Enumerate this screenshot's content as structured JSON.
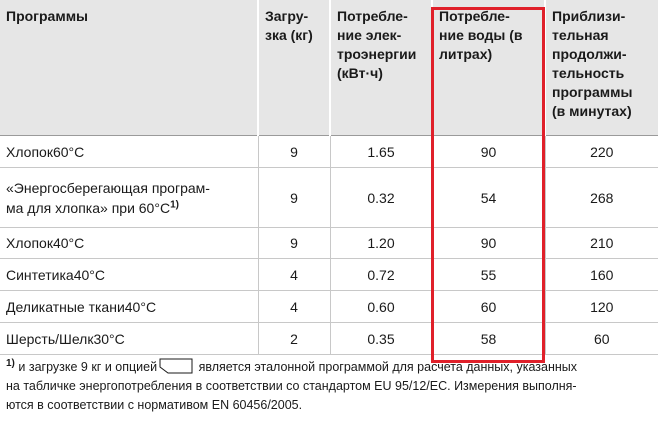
{
  "table": {
    "header": [
      "Программы",
      "Загру-\nзка (кг)",
      "Потребле-\nние элек-\nтроэнергии\n(кВт·ч)",
      "Потребле-\nние воды (в\nлитрах)",
      "Приблизи-\nтельная\nпродолжи-\nтельность\nпрограммы\n(в минутах)"
    ],
    "rows": [
      [
        "Хлопок60°C",
        "9",
        "1.65",
        "90",
        "220"
      ],
      [
        "«Энергосберегающая програм-\nма для хлопка» при 60°C",
        "9",
        "0.32",
        "54",
        "268"
      ],
      [
        "Хлопок40°C",
        "9",
        "1.20",
        "90",
        "210"
      ],
      [
        "Синтетика40°C",
        "4",
        "0.72",
        "55",
        "160"
      ],
      [
        "Деликатные ткани40°C",
        "4",
        "0.60",
        "60",
        "120"
      ],
      [
        "Шерсть/Шелк30°C",
        "2",
        "0.35",
        "58",
        "60"
      ]
    ],
    "row_note_ref": "1)"
  },
  "footnote": {
    "ref": "1)",
    "before_icon": "и загрузке 9 кг и опцией",
    "after_icon": "является эталонной программой для расчета данных, указанных\nна табличке энергопотребления в соответствии со стандартом EU 95/12/EC. Измерения выполня-\nются в соответствии с нормативом EN 60456/2005."
  }
}
